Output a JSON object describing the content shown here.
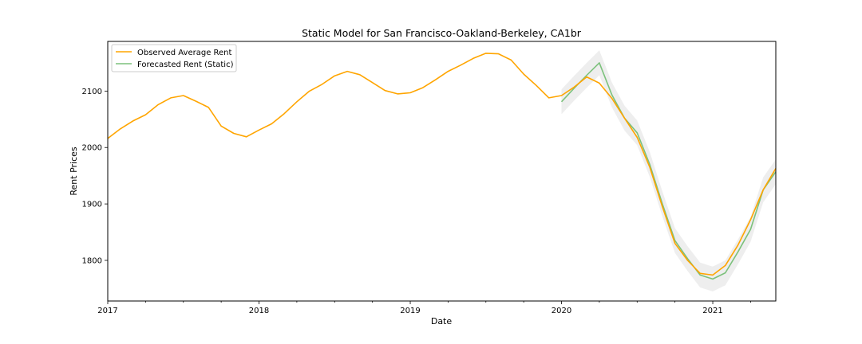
{
  "chart_data": {
    "type": "line",
    "title": "Static Model for San Francisco-Oakland-Berkeley, CA1br",
    "xlabel": "Date",
    "ylabel": "Rent Prices",
    "xlim": [
      0,
      53
    ],
    "ylim": [
      1728,
      2188
    ],
    "x_ticks": [
      {
        "pos": 0,
        "label": "2017"
      },
      {
        "pos": 12,
        "label": "2018"
      },
      {
        "pos": 24,
        "label": "2019"
      },
      {
        "pos": 36,
        "label": "2020"
      },
      {
        "pos": 48,
        "label": "2021"
      }
    ],
    "y_ticks": [
      1800,
      1900,
      2000,
      2100
    ],
    "grid": false,
    "legend_position": "top-left",
    "series": [
      {
        "name": "Observed Average Rent",
        "color": "#FFA500",
        "x": [
          0,
          1,
          2,
          3,
          4,
          5,
          6,
          7,
          8,
          9,
          10,
          11,
          12,
          13,
          14,
          15,
          16,
          17,
          18,
          19,
          20,
          21,
          22,
          23,
          24,
          25,
          26,
          27,
          28,
          29,
          30,
          31,
          32,
          33,
          34,
          35,
          36,
          37,
          38,
          39,
          40,
          41,
          42,
          43,
          44,
          45,
          46,
          47,
          48,
          49,
          50,
          51,
          52,
          53
        ],
        "values": [
          2016,
          2033,
          2047,
          2058,
          2076,
          2088,
          2092,
          2082,
          2071,
          2038,
          2025,
          2019,
          2031,
          2042,
          2060,
          2081,
          2100,
          2112,
          2127,
          2135,
          2129,
          2115,
          2101,
          2095,
          2097,
          2106,
          2120,
          2135,
          2146,
          2158,
          2167,
          2166,
          2155,
          2130,
          2110,
          2088,
          2092,
          2107,
          2125,
          2114,
          2087,
          2052,
          2018,
          1965,
          1895,
          1830,
          1800,
          1777,
          1774,
          1791,
          1827,
          1872,
          1925,
          1963
        ]
      },
      {
        "name": "Forecasted Rent (Static)",
        "color": "#7CC17C",
        "x": [
          36,
          37,
          38,
          39,
          40,
          41,
          42,
          43,
          44,
          45,
          46,
          47,
          48,
          49,
          50,
          51,
          52,
          53
        ],
        "values": [
          2081,
          2105,
          2128,
          2150,
          2093,
          2052,
          2026,
          1970,
          1900,
          1835,
          1803,
          1774,
          1767,
          1778,
          1815,
          1855,
          1925,
          1957
        ]
      }
    ],
    "confidence_band": {
      "color": "#D9D9D9",
      "x": [
        36,
        37,
        38,
        39,
        40,
        41,
        42,
        43,
        44,
        45,
        46,
        47,
        48,
        49,
        50,
        51,
        52,
        53
      ],
      "lower": [
        2059,
        2083,
        2106,
        2128,
        2071,
        2030,
        2004,
        1948,
        1878,
        1813,
        1781,
        1752,
        1745,
        1756,
        1793,
        1833,
        1903,
        1935
      ],
      "upper": [
        2103,
        2127,
        2150,
        2172,
        2115,
        2074,
        2048,
        1992,
        1922,
        1857,
        1825,
        1796,
        1789,
        1800,
        1837,
        1877,
        1947,
        1979
      ]
    }
  }
}
